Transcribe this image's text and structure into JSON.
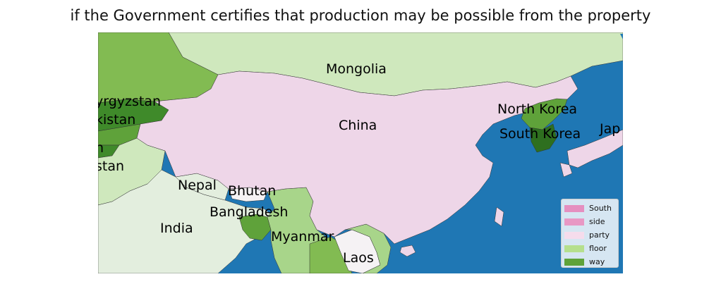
{
  "title": "if the Government certifies that production may be possible from the property",
  "colors": {
    "ocean": "#1f77b4",
    "pink": "#eed6e8",
    "light_green": "#cfe8bd",
    "pale_green": "#e3eede",
    "mid_green": "#a8d58a",
    "green": "#82bb52",
    "dark_green": "#3f8a2a",
    "border": "#333333"
  },
  "map": {
    "labels": {
      "mongolia": "Mongolia",
      "china": "China",
      "north_korea": "North Korea",
      "south_korea": "South Korea",
      "japan": "Jap",
      "kyrgyzstan": "yrgyzstan",
      "tajikistan": "kistan",
      "afghanistan": "n",
      "pakistan": "stan",
      "nepal": "Nepal",
      "bhutan": "Bhutan",
      "bangladesh": "Bangladesh",
      "india": "India",
      "myanmar": "Myanmar",
      "laos": "Laos"
    }
  },
  "legend": {
    "items": [
      {
        "label": "South",
        "color": "#e58fc0"
      },
      {
        "label": "side",
        "color": "#e898c4"
      },
      {
        "label": "party",
        "color": "#f5dcec"
      },
      {
        "label": "floor",
        "color": "#b5df8d"
      },
      {
        "label": "way",
        "color": "#5fa23a"
      }
    ]
  }
}
